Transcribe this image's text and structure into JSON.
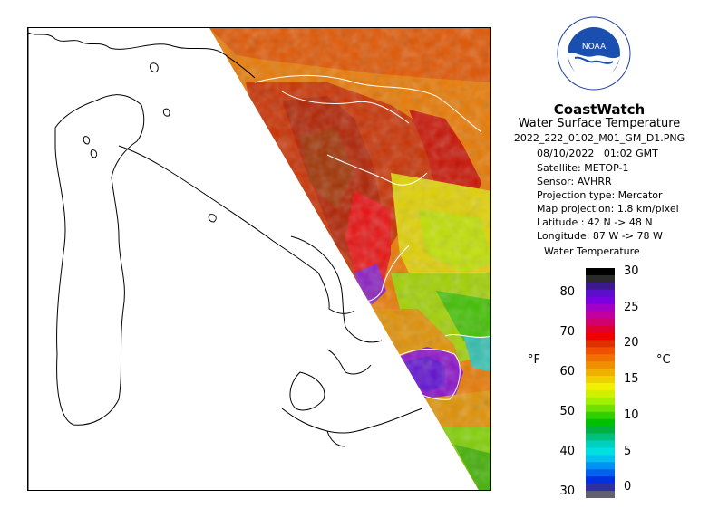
{
  "product": {
    "title": "CoastWatch",
    "subtitle": "Water Surface Temperature",
    "filename": "2022_222_0102_M01_GM_D1.PNG",
    "date": "08/10/2022",
    "time": "01:02 GMT"
  },
  "metadata": [
    {
      "label": "Satellite:",
      "value": "METOP-1"
    },
    {
      "label": "Sensor:",
      "value": "AVHRR"
    },
    {
      "label": "Projection type:",
      "value": "Mercator"
    },
    {
      "label": "Map projection:",
      "value": "1.8 km/pixel"
    },
    {
      "label": "Latitude :",
      "value": "42 N -> 48 N"
    },
    {
      "label": "Longitude:",
      "value": "87 W -> 78 W"
    }
  ],
  "legend": {
    "title": "Water Temperature",
    "unit_f": "°F",
    "unit_c": "°C",
    "ticks_f": [
      "80",
      "70",
      "60",
      "50",
      "40",
      "30"
    ],
    "ticks_c": [
      "30",
      "25",
      "20",
      "15",
      "10",
      "5",
      "0"
    ],
    "colors": [
      "#000000",
      "#2a2a2a",
      "#3d1a8c",
      "#5a10c8",
      "#7a00e0",
      "#a000c8",
      "#c000a0",
      "#d00070",
      "#e00030",
      "#f00000",
      "#e03000",
      "#f05000",
      "#f07000",
      "#f09000",
      "#f0b000",
      "#f0d000",
      "#f0f000",
      "#d0f000",
      "#a0f000",
      "#70e000",
      "#30d000",
      "#00c000",
      "#00b040",
      "#00c080",
      "#00d0c0",
      "#00e0e0",
      "#00c0f0",
      "#0090f0",
      "#0060f0",
      "#0030e0",
      "#3030a0",
      "#606070"
    ]
  },
  "logo": {
    "text": "NOAA",
    "arc_text": "NATIONAL OCEANIC AND ATMOSPHERIC ADMINISTRATION"
  }
}
